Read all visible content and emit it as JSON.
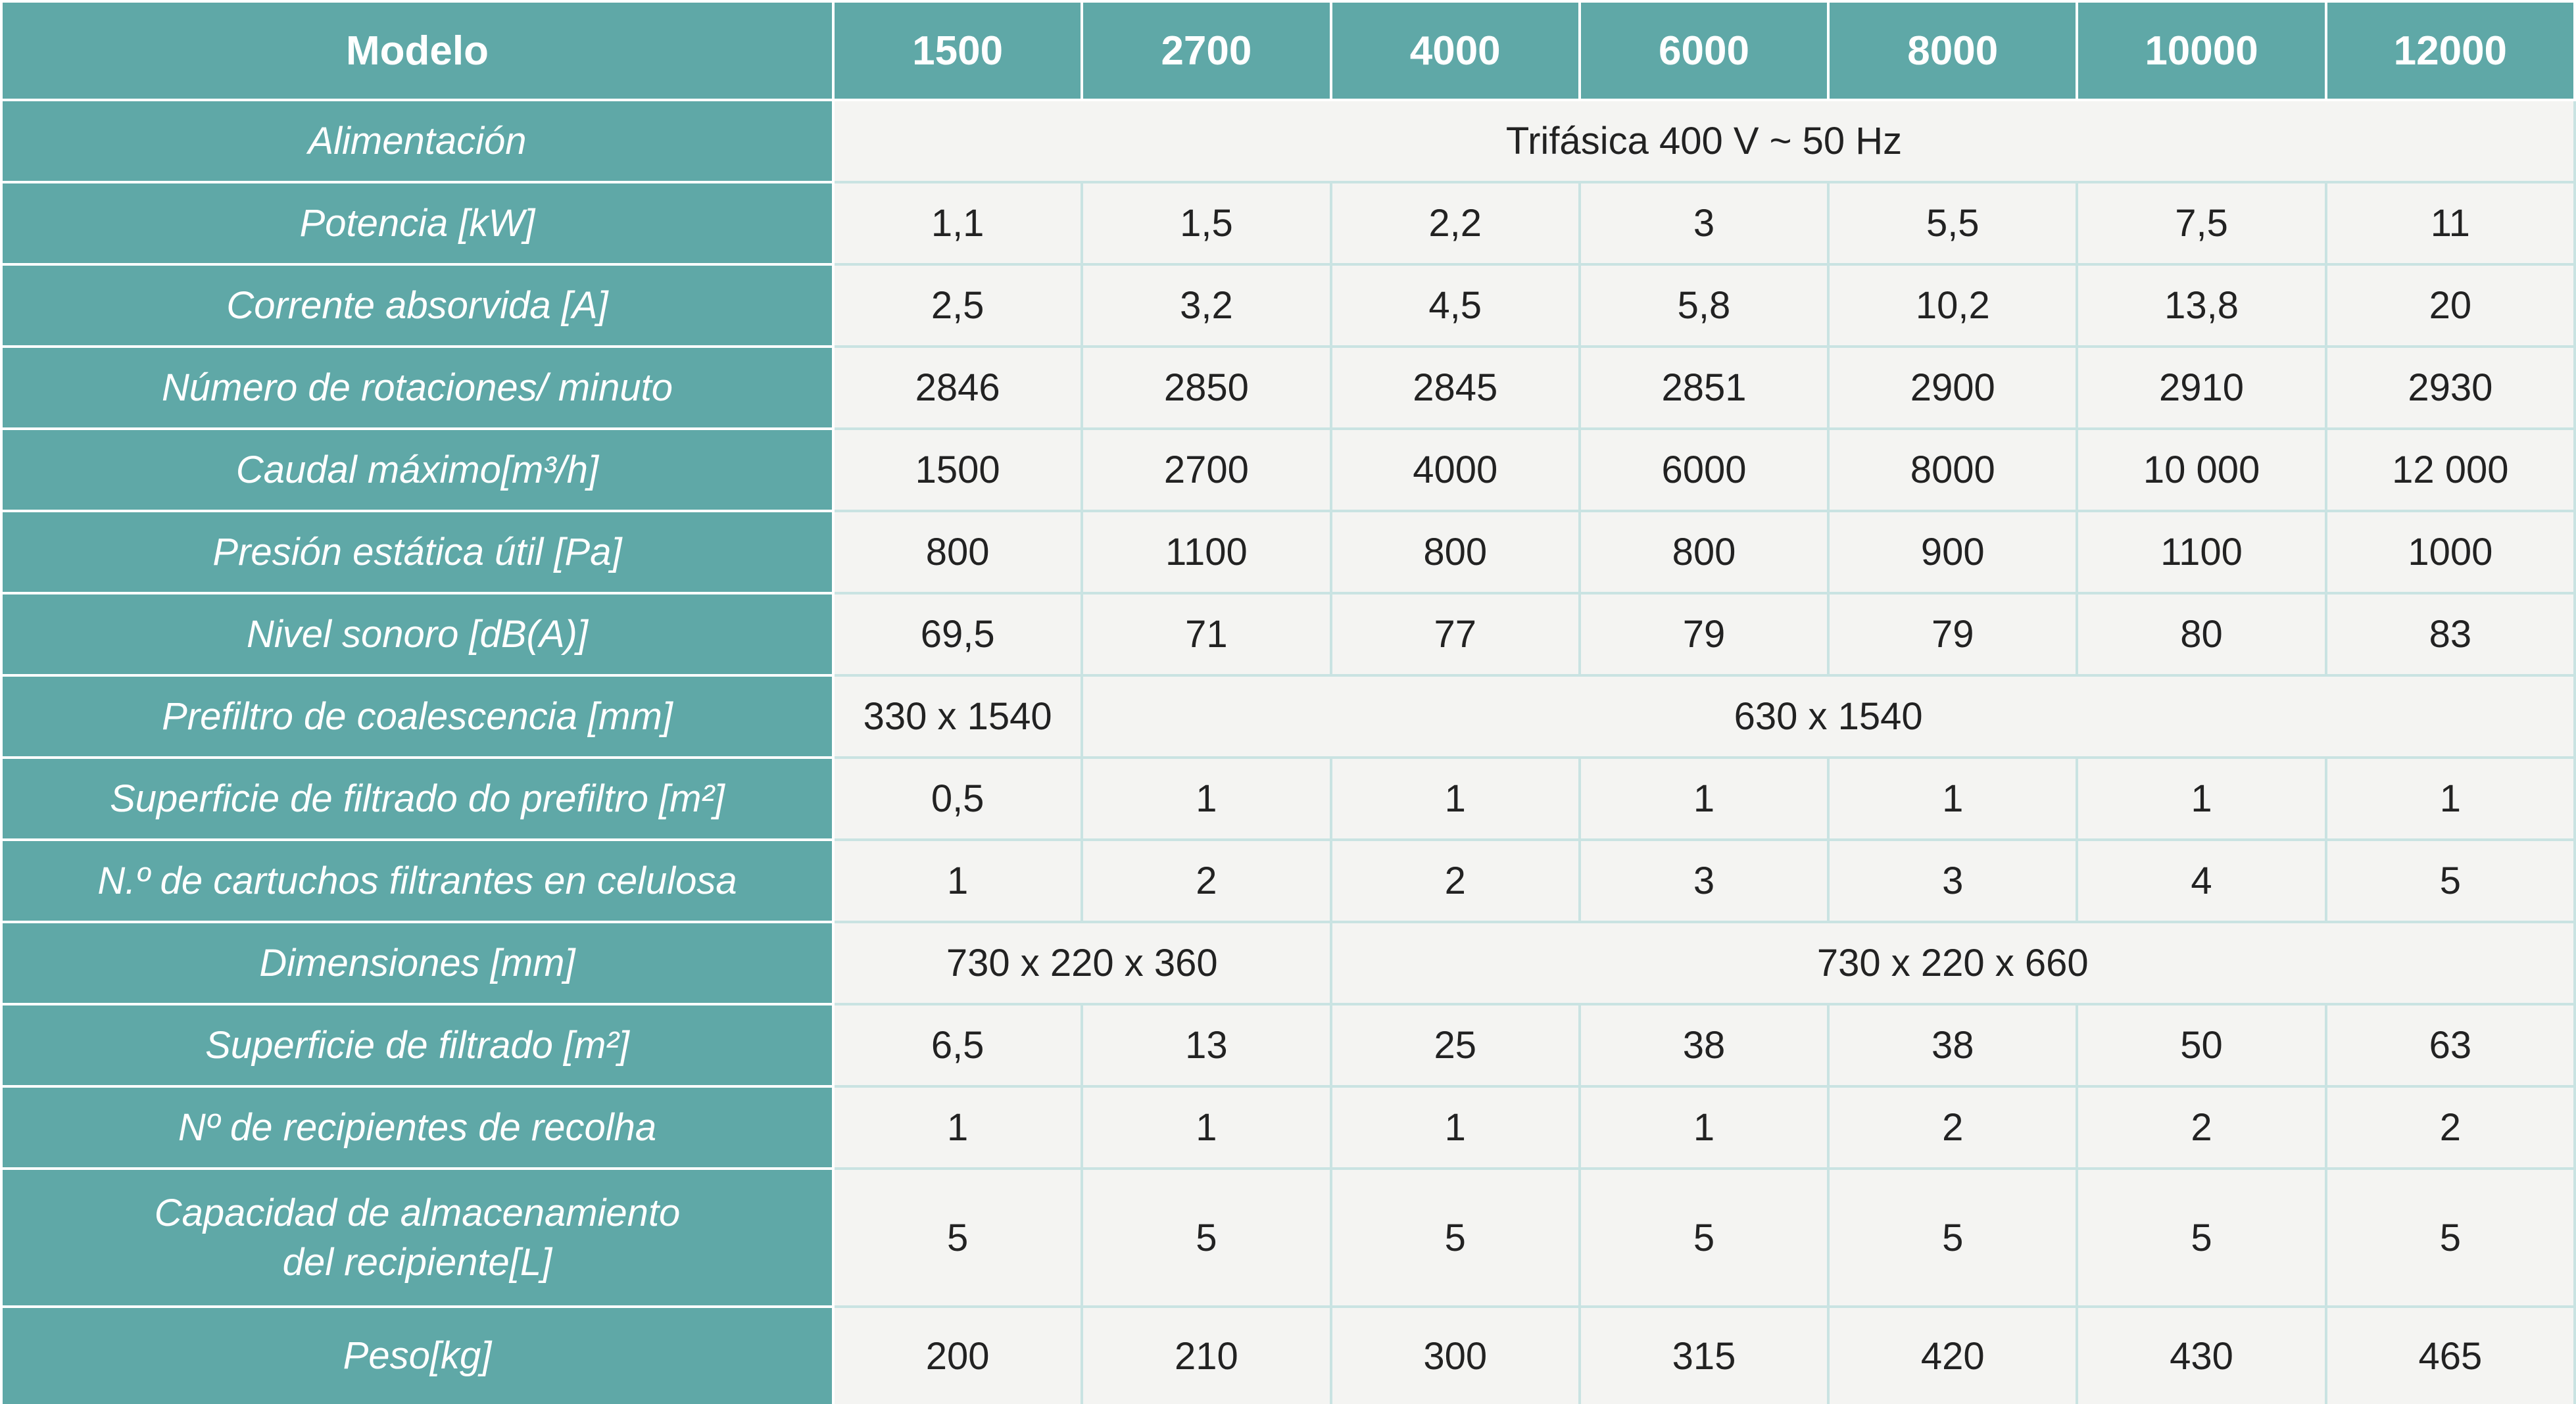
{
  "table": {
    "header": [
      "Modelo",
      "1500",
      "2700",
      "4000",
      "6000",
      "8000",
      "10000",
      "12000"
    ],
    "rows": [
      {
        "label": "Alimentación",
        "cells": [
          "Trifásica 400 V ~ 50 Hz"
        ]
      },
      {
        "label": "Potencia [kW]",
        "cells": [
          "1,1",
          "1,5",
          "2,2",
          "3",
          "5,5",
          "7,5",
          "11"
        ]
      },
      {
        "label": "Corrente absorvida [A]",
        "cells": [
          "2,5",
          "3,2",
          "4,5",
          "5,8",
          "10,2",
          "13,8",
          "20"
        ]
      },
      {
        "label": "Número de rotaciones/ minuto",
        "cells": [
          "2846",
          "2850",
          "2845",
          "2851",
          "2900",
          "2910",
          "2930"
        ]
      },
      {
        "label": "Caudal máximo[m³/h]",
        "cells": [
          "1500",
          "2700",
          "4000",
          "6000",
          "8000",
          "10 000",
          "12 000"
        ]
      },
      {
        "label": "Presión estática útil [Pa]",
        "cells": [
          "800",
          "1100",
          "800",
          "800",
          "900",
          "1100",
          "1000"
        ]
      },
      {
        "label": "Nivel sonoro [dB(A)]",
        "cells": [
          "69,5",
          "71",
          "77",
          "79",
          "79",
          "80",
          "83"
        ]
      },
      {
        "label": "Prefiltro de coalescencia [mm]",
        "cells": [
          "330 x 1540",
          "630 x 1540"
        ]
      },
      {
        "label": "Superficie de filtrado do prefiltro [m²]",
        "cells": [
          "0,5",
          "1",
          "1",
          "1",
          "1",
          "1",
          "1"
        ]
      },
      {
        "label": "N.º de cartuchos filtrantes en celulosa",
        "cells": [
          "1",
          "2",
          "2",
          "3",
          "3",
          "4",
          "5"
        ]
      },
      {
        "label": "Dimensiones [mm]",
        "cells": [
          "730 x 220 x 360",
          "730 x 220 x 660"
        ]
      },
      {
        "label": "Superficie de filtrado [m²]",
        "cells": [
          "6,5",
          "13",
          "25",
          "38",
          "38",
          "50",
          "63"
        ]
      },
      {
        "label": "Nº de recipientes de recolha",
        "cells": [
          "1",
          "1",
          "1",
          "1",
          "2",
          "2",
          "2"
        ]
      },
      {
        "label": "Capacidad de almacenamiento\ndel recipiente[L]",
        "cells": [
          "5",
          "5",
          "5",
          "5",
          "5",
          "5",
          "5"
        ]
      },
      {
        "label": "Peso[kg]",
        "cells": [
          "200",
          "210",
          "300",
          "315",
          "420",
          "430",
          "465"
        ]
      }
    ]
  }
}
